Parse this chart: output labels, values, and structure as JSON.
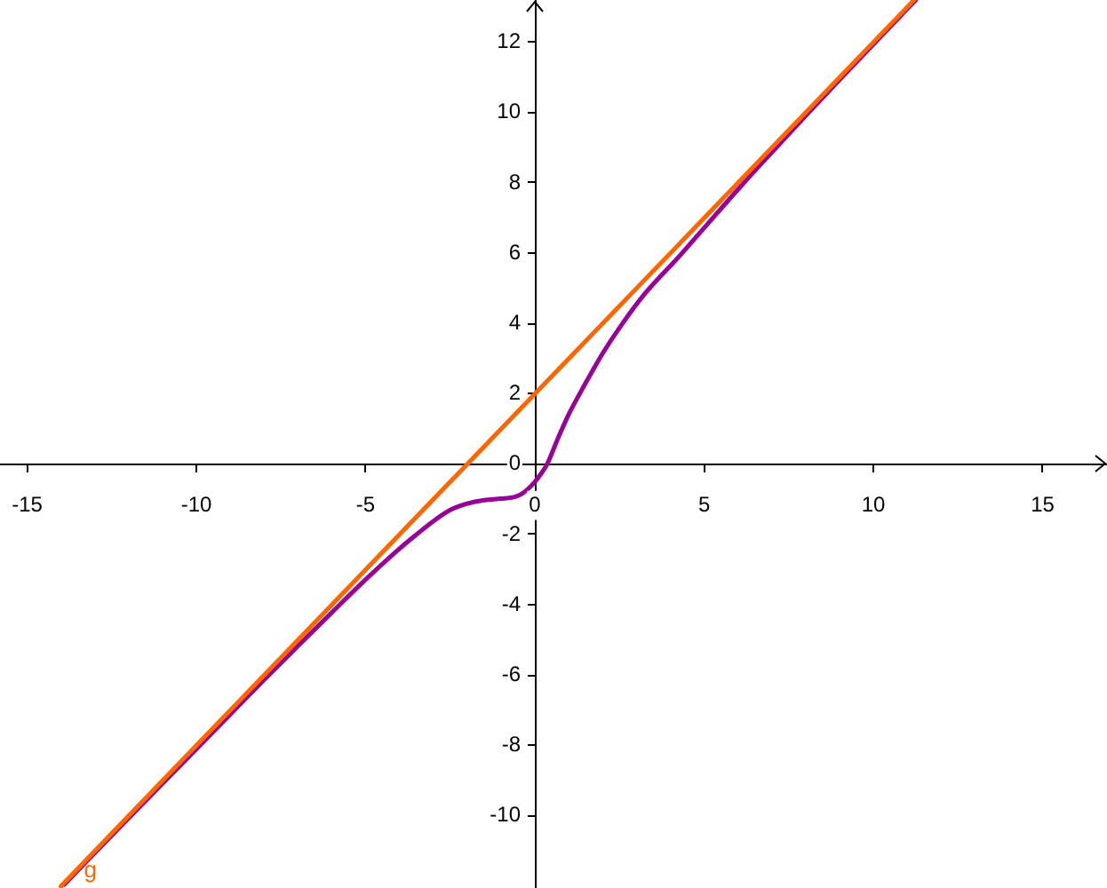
{
  "chart_data": {
    "type": "line",
    "xlim": [
      -15.8,
      16.9
    ],
    "ylim": [
      -12.05,
      13.2
    ],
    "xticks": [
      -15,
      -10,
      -5,
      0,
      5,
      10,
      15
    ],
    "yticks": [
      -10,
      -8,
      -6,
      -4,
      -2,
      0,
      2,
      4,
      6,
      8,
      10,
      12
    ],
    "series": [
      {
        "color": "#990099",
        "x": [
          -13.9,
          -12,
          -10,
          -8,
          -7,
          -6,
          -5,
          -4,
          -3.5,
          -3,
          -2.5,
          -2,
          -1.5,
          -1,
          -0.6,
          -0.4,
          -0.2,
          0,
          0.18,
          0.36,
          0.7,
          1,
          1.35,
          1.7,
          2,
          2.55,
          3.25,
          4.3,
          5,
          6.2,
          7,
          8,
          9,
          11.25
        ],
        "values": [
          -11.95,
          -10.06,
          -8.1,
          -6.13,
          -5.17,
          -4.22,
          -3.28,
          -2.4,
          -2.0,
          -1.62,
          -1.3,
          -1.12,
          -1.02,
          -0.98,
          -0.93,
          -0.85,
          -0.7,
          -0.5,
          -0.27,
          0,
          0.78,
          1.42,
          2.05,
          2.65,
          3.15,
          3.95,
          4.85,
          5.95,
          6.72,
          8.03,
          8.87,
          9.91,
          10.93,
          13.2
        ]
      },
      {
        "name": "g",
        "color": "#ff6600",
        "x": [
          -14,
          -2,
          0,
          11.2
        ],
        "values": [
          -12,
          0,
          2,
          13.2
        ]
      }
    ]
  }
}
